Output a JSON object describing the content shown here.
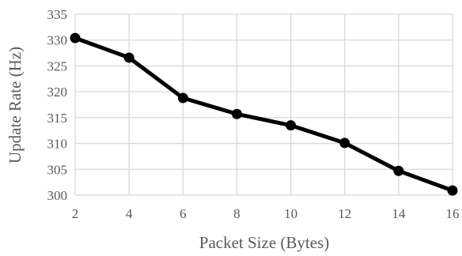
{
  "chart_data": {
    "type": "line",
    "title": "",
    "xlabel": "Packet Size (Bytes)",
    "ylabel": "Update Rate (Hz)",
    "x": [
      2,
      4,
      6,
      8,
      10,
      12,
      14,
      16
    ],
    "series": [
      {
        "values": [
          330.4,
          326.6,
          318.8,
          315.7,
          313.5,
          310.1,
          304.7,
          300.9
        ]
      }
    ],
    "xlim": [
      2,
      16
    ],
    "ylim": [
      300,
      335
    ],
    "xticks": [
      "2",
      "4",
      "6",
      "8",
      "10",
      "12",
      "14",
      "16"
    ],
    "yticks": [
      "300",
      "305",
      "310",
      "315",
      "320",
      "325",
      "330",
      "335"
    ],
    "grid": true,
    "legend": "none",
    "colors": {
      "series": "#000000",
      "grid": "#d9d9d9",
      "text": "#595959"
    }
  }
}
